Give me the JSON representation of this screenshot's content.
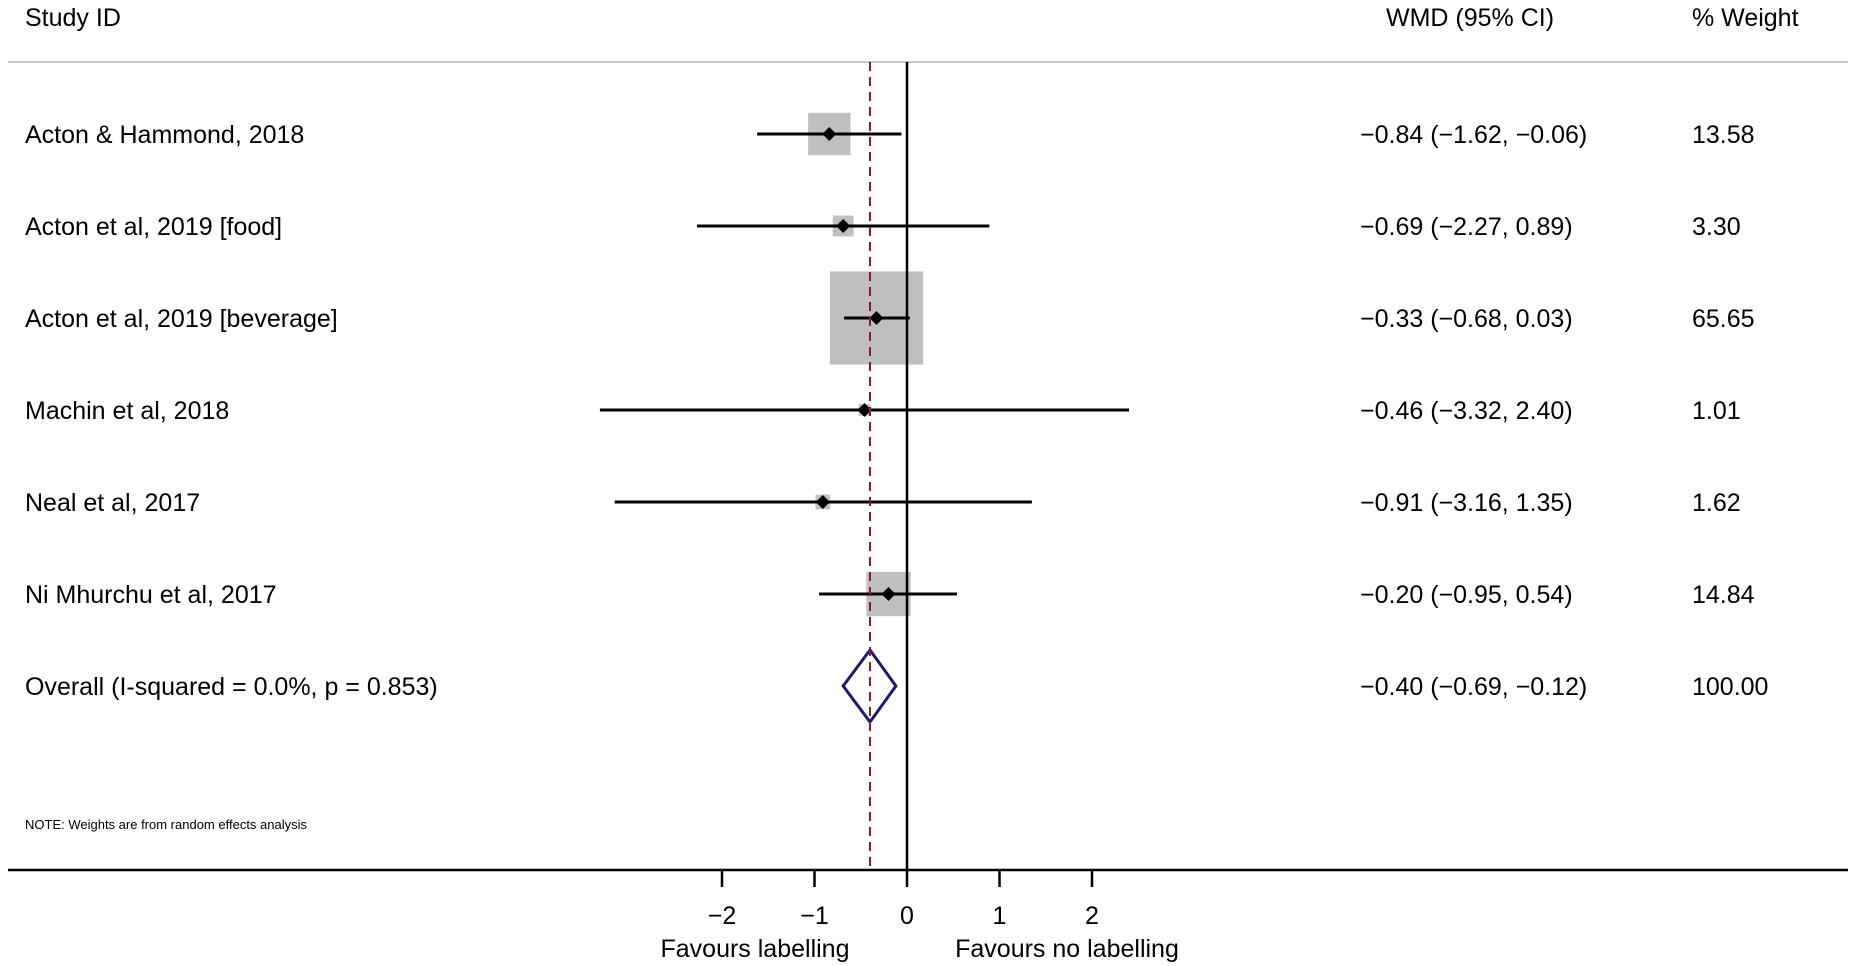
{
  "headers": {
    "study": "Study ID",
    "effect": "WMD (95% CI)",
    "weight": "% Weight"
  },
  "note": "NOTE: Weights are from random effects analysis",
  "favours": {
    "left": "Favours labelling",
    "right": "Favours no labelling"
  },
  "colors": {
    "box": "#bfbfbf",
    "line": "#000000",
    "diamond": "#1a1a6e",
    "overall_line": "#8b1a2e",
    "rule": "#c8c8c8"
  },
  "chart_data": {
    "type": "forest",
    "measure": "WMD",
    "xlim": [
      -3.32,
      2.4
    ],
    "null_value": 0,
    "xticks": [
      -2,
      -1,
      0,
      1,
      2
    ],
    "xtick_labels": [
      "−2",
      "−1",
      "0",
      "1",
      "2"
    ],
    "studies": [
      {
        "label": "Acton & Hammond, 2018",
        "est": -0.84,
        "lo": -1.62,
        "hi": -0.06,
        "weight": 13.58,
        "ci_text": "−0.84 (−1.62, −0.06)",
        "weight_text": "13.58"
      },
      {
        "label": "Acton et al, 2019 [food]",
        "est": -0.69,
        "lo": -2.27,
        "hi": 0.89,
        "weight": 3.3,
        "ci_text": "−0.69 (−2.27, 0.89)",
        "weight_text": "3.30"
      },
      {
        "label": "Acton et al, 2019 [beverage]",
        "est": -0.33,
        "lo": -0.68,
        "hi": 0.03,
        "weight": 65.65,
        "ci_text": "−0.33 (−0.68, 0.03)",
        "weight_text": "65.65"
      },
      {
        "label": "Machin et al, 2018",
        "est": -0.46,
        "lo": -3.32,
        "hi": 2.4,
        "weight": 1.01,
        "ci_text": "−0.46 (−3.32, 2.40)",
        "weight_text": "1.01"
      },
      {
        "label": "Neal et al, 2017",
        "est": -0.91,
        "lo": -3.16,
        "hi": 1.35,
        "weight": 1.62,
        "ci_text": "−0.91 (−3.16, 1.35)",
        "weight_text": "1.62"
      },
      {
        "label": "Ni Mhurchu et al, 2017",
        "est": -0.2,
        "lo": -0.95,
        "hi": 0.54,
        "weight": 14.84,
        "ci_text": "−0.20 (−0.95, 0.54)",
        "weight_text": "14.84"
      }
    ],
    "overall": {
      "label": "Overall  (I-squared = 0.0%, p = 0.853)",
      "est": -0.4,
      "lo": -0.69,
      "hi": -0.12,
      "weight": 100.0,
      "ci_text": "−0.40 (−0.69, −0.12)",
      "weight_text": "100.00"
    }
  }
}
